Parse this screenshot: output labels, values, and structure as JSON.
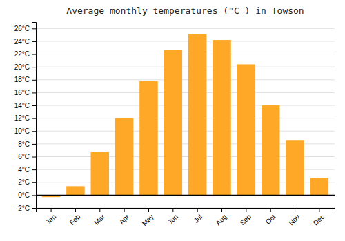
{
  "chart_data": {
    "type": "bar",
    "title": "Average monthly temperatures (°C ) in Towson",
    "categories": [
      "Jan",
      "Feb",
      "Mar",
      "Apr",
      "May",
      "Jun",
      "Jul",
      "Aug",
      "Sep",
      "Oct",
      "Nov",
      "Dec"
    ],
    "values": [
      -0.3,
      1.4,
      6.7,
      12.0,
      17.8,
      22.6,
      25.1,
      24.2,
      20.4,
      14.0,
      8.5,
      2.7
    ],
    "color": "#FFA726",
    "ylim": [
      -2,
      27
    ],
    "yticks": [
      {
        "value": -2,
        "label": "-2°C"
      },
      {
        "value": 0,
        "label": "0°C"
      },
      {
        "value": 2,
        "label": "2°C"
      },
      {
        "value": 4,
        "label": "4°C"
      },
      {
        "value": 6,
        "label": "6°C"
      },
      {
        "value": 8,
        "label": "8°C"
      },
      {
        "value": 10,
        "label": "10°C"
      },
      {
        "value": 12,
        "label": "12°C"
      },
      {
        "value": 14,
        "label": "14°C"
      },
      {
        "value": 16,
        "label": "16°C"
      },
      {
        "value": 18,
        "label": "18°C"
      },
      {
        "value": 20,
        "label": "20°C"
      },
      {
        "value": 22,
        "label": "22°C"
      },
      {
        "value": 24,
        "label": "24°C"
      },
      {
        "value": 26,
        "label": "26°C"
      }
    ],
    "grid": true
  }
}
